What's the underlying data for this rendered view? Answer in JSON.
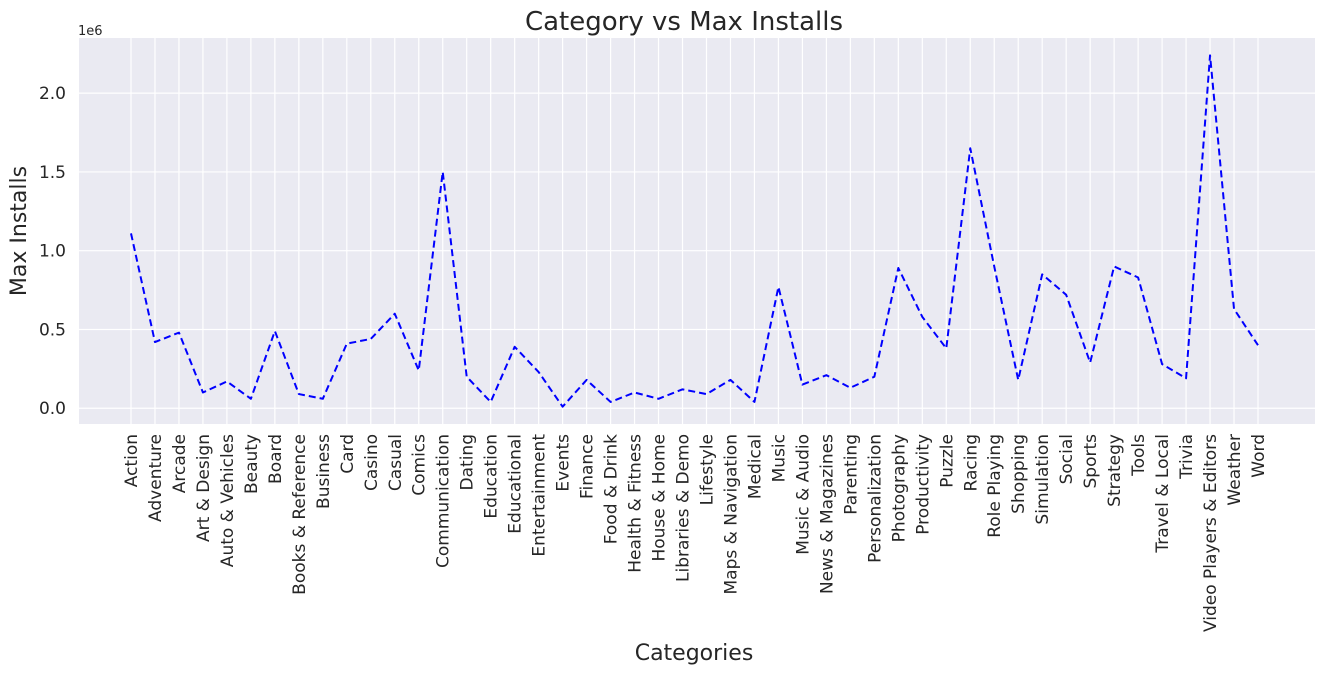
{
  "chart_data": {
    "type": "line",
    "title": "Category vs Max Installs",
    "xlabel": "Categories",
    "ylabel": "Max Installs",
    "offset_label": "1e6",
    "ylim": [
      -0.1,
      2.35
    ],
    "yticks": [
      0.0,
      0.5,
      1.0,
      1.5,
      2.0
    ],
    "ytick_labels": [
      "0.0",
      "0.5",
      "1.0",
      "1.5",
      "2.0"
    ],
    "grid": true,
    "line_color": "#0000ff",
    "line_style": "dashed",
    "background_color": "#eaeaf2",
    "categories": [
      "Action",
      "Adventure",
      "Arcade",
      "Art & Design",
      "Auto & Vehicles",
      "Beauty",
      "Board",
      "Books & Reference",
      "Business",
      "Card",
      "Casino",
      "Casual",
      "Comics",
      "Communication",
      "Dating",
      "Education",
      "Educational",
      "Entertainment",
      "Events",
      "Finance",
      "Food & Drink",
      "Health & Fitness",
      "House & Home",
      "Libraries & Demo",
      "Lifestyle",
      "Maps & Navigation",
      "Medical",
      "Music",
      "Music & Audio",
      "News & Magazines",
      "Parenting",
      "Personalization",
      "Photography",
      "Productivity",
      "Puzzle",
      "Racing",
      "Role Playing",
      "Shopping",
      "Simulation",
      "Social",
      "Sports",
      "Strategy",
      "Tools",
      "Travel & Local",
      "Trivia",
      "Video Players & Editors",
      "Weather",
      "Word"
    ],
    "values": [
      1110000,
      420000,
      480000,
      100000,
      170000,
      60000,
      490000,
      90000,
      60000,
      410000,
      440000,
      600000,
      240000,
      1500000,
      200000,
      40000,
      390000,
      230000,
      10000,
      180000,
      40000,
      100000,
      60000,
      120000,
      90000,
      180000,
      40000,
      770000,
      150000,
      210000,
      130000,
      200000,
      890000,
      580000,
      380000,
      1650000,
      900000,
      180000,
      850000,
      720000,
      290000,
      900000,
      830000,
      280000,
      190000,
      2240000,
      630000,
      400000
    ]
  }
}
